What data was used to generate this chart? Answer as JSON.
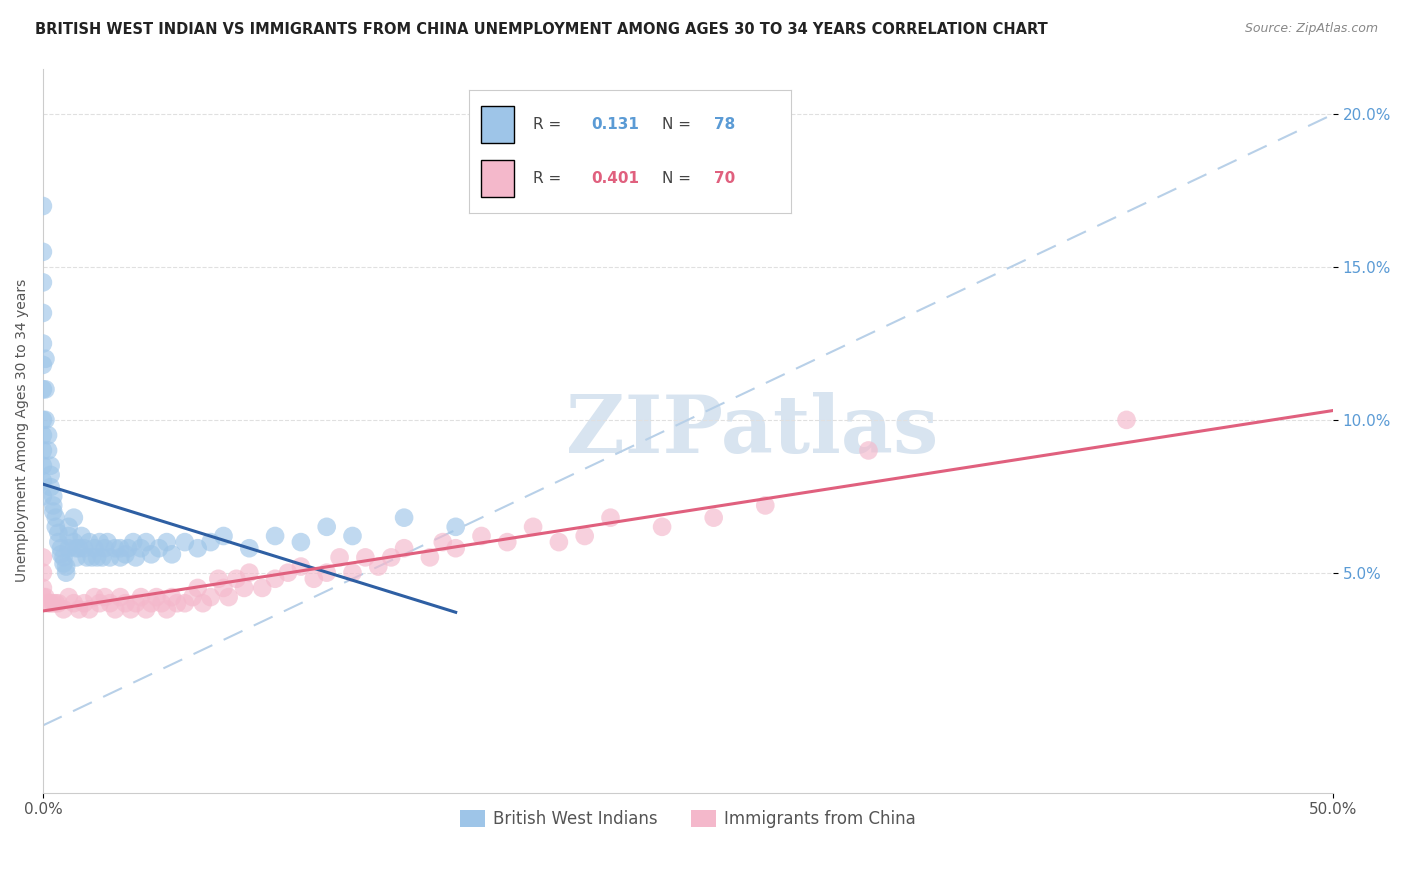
{
  "title": "BRITISH WEST INDIAN VS IMMIGRANTS FROM CHINA UNEMPLOYMENT AMONG AGES 30 TO 34 YEARS CORRELATION CHART",
  "source": "Source: ZipAtlas.com",
  "ylabel": "Unemployment Among Ages 30 to 34 years",
  "xlim": [
    0,
    0.5
  ],
  "ylim": [
    -0.022,
    0.215
  ],
  "xticks": [
    0.0,
    0.5
  ],
  "xticklabels": [
    "0.0%",
    "50.0%"
  ],
  "yticks": [
    0.05,
    0.1,
    0.15,
    0.2
  ],
  "yticklabels": [
    "5.0%",
    "10.0%",
    "15.0%",
    "20.0%"
  ],
  "ytick_color": "#5b9bd5",
  "label1": "British West Indians",
  "label2": "Immigrants from China",
  "color1": "#9ec5e8",
  "color2": "#f4b8cb",
  "trendline1_color": "#2e5fa3",
  "trendline2_color": "#e0607e",
  "ref_line_color": "#b8d0e8",
  "title_fontsize": 10.5,
  "axis_fontsize": 10,
  "tick_fontsize": 11,
  "watermark_text": "ZIPatlas",
  "watermark_color": "#d8e4f0",
  "background_color": "#ffffff",
  "grid_color": "#e0e0e0",
  "bwi_x": [
    0.0,
    0.0,
    0.0,
    0.0,
    0.0,
    0.0,
    0.0,
    0.0,
    0.0,
    0.0,
    0.0,
    0.0,
    0.0,
    0.001,
    0.001,
    0.001,
    0.002,
    0.002,
    0.003,
    0.003,
    0.003,
    0.004,
    0.004,
    0.004,
    0.005,
    0.005,
    0.006,
    0.006,
    0.007,
    0.007,
    0.008,
    0.008,
    0.009,
    0.009,
    0.01,
    0.01,
    0.01,
    0.012,
    0.012,
    0.013,
    0.013,
    0.014,
    0.015,
    0.016,
    0.017,
    0.018,
    0.019,
    0.02,
    0.021,
    0.022,
    0.023,
    0.024,
    0.025,
    0.026,
    0.028,
    0.03,
    0.03,
    0.032,
    0.033,
    0.035,
    0.036,
    0.038,
    0.04,
    0.042,
    0.045,
    0.048,
    0.05,
    0.055,
    0.06,
    0.065,
    0.07,
    0.08,
    0.09,
    0.1,
    0.11,
    0.12,
    0.14,
    0.16
  ],
  "bwi_y": [
    0.17,
    0.155,
    0.145,
    0.135,
    0.125,
    0.118,
    0.11,
    0.1,
    0.095,
    0.09,
    0.085,
    0.08,
    0.075,
    0.12,
    0.11,
    0.1,
    0.095,
    0.09,
    0.085,
    0.082,
    0.078,
    0.075,
    0.072,
    0.07,
    0.068,
    0.065,
    0.063,
    0.06,
    0.058,
    0.056,
    0.055,
    0.053,
    0.052,
    0.05,
    0.065,
    0.062,
    0.058,
    0.068,
    0.06,
    0.058,
    0.055,
    0.058,
    0.062,
    0.058,
    0.055,
    0.06,
    0.055,
    0.058,
    0.055,
    0.06,
    0.055,
    0.058,
    0.06,
    0.055,
    0.058,
    0.058,
    0.055,
    0.056,
    0.058,
    0.06,
    0.055,
    0.058,
    0.06,
    0.056,
    0.058,
    0.06,
    0.056,
    0.06,
    0.058,
    0.06,
    0.062,
    0.058,
    0.062,
    0.06,
    0.065,
    0.062,
    0.068,
    0.065
  ],
  "china_x": [
    0.0,
    0.0,
    0.0,
    0.0,
    0.001,
    0.002,
    0.003,
    0.004,
    0.005,
    0.006,
    0.008,
    0.01,
    0.012,
    0.014,
    0.016,
    0.018,
    0.02,
    0.022,
    0.024,
    0.026,
    0.028,
    0.03,
    0.032,
    0.034,
    0.036,
    0.038,
    0.04,
    0.042,
    0.044,
    0.046,
    0.048,
    0.05,
    0.052,
    0.055,
    0.058,
    0.06,
    0.062,
    0.065,
    0.068,
    0.07,
    0.072,
    0.075,
    0.078,
    0.08,
    0.085,
    0.09,
    0.095,
    0.1,
    0.105,
    0.11,
    0.115,
    0.12,
    0.125,
    0.13,
    0.135,
    0.14,
    0.15,
    0.155,
    0.16,
    0.17,
    0.18,
    0.19,
    0.2,
    0.21,
    0.22,
    0.24,
    0.26,
    0.28,
    0.32,
    0.42
  ],
  "china_y": [
    0.055,
    0.05,
    0.045,
    0.042,
    0.042,
    0.04,
    0.04,
    0.04,
    0.04,
    0.04,
    0.038,
    0.042,
    0.04,
    0.038,
    0.04,
    0.038,
    0.042,
    0.04,
    0.042,
    0.04,
    0.038,
    0.042,
    0.04,
    0.038,
    0.04,
    0.042,
    0.038,
    0.04,
    0.042,
    0.04,
    0.038,
    0.042,
    0.04,
    0.04,
    0.042,
    0.045,
    0.04,
    0.042,
    0.048,
    0.045,
    0.042,
    0.048,
    0.045,
    0.05,
    0.045,
    0.048,
    0.05,
    0.052,
    0.048,
    0.05,
    0.055,
    0.05,
    0.055,
    0.052,
    0.055,
    0.058,
    0.055,
    0.06,
    0.058,
    0.062,
    0.06,
    0.065,
    0.06,
    0.062,
    0.068,
    0.065,
    0.068,
    0.072,
    0.09,
    0.1
  ],
  "bwi_trendline_xlim": [
    0.0,
    0.16
  ],
  "china_trendline_xlim": [
    0.0,
    0.5
  ]
}
